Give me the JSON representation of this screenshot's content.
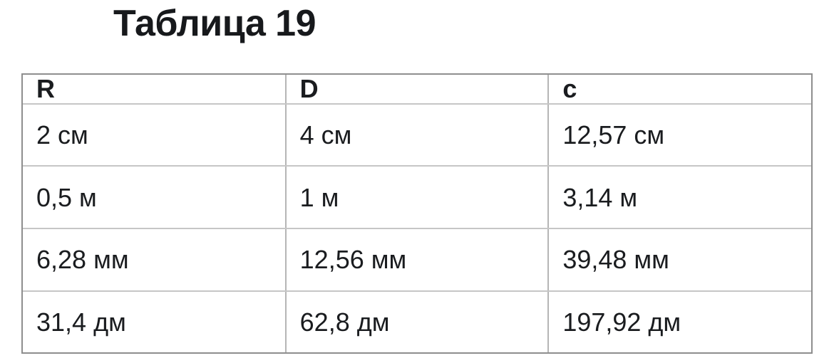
{
  "title": "Таблица 19",
  "table": {
    "headers": [
      "R",
      "D",
      "c"
    ],
    "rows": [
      [
        "2 см",
        "4 см",
        "12,57 см"
      ],
      [
        "0,5 м",
        "1 м",
        "3,14 м"
      ],
      [
        "6,28 мм",
        "12,56 мм",
        "39,48 мм"
      ],
      [
        "31,4 дм",
        "62,8 дм",
        "197,92 дм"
      ]
    ]
  },
  "colors": {
    "background": "#ffffff",
    "text": "#1a1c1f",
    "outer_border": "#8e8e8e",
    "inner_border_vertical": "#b5b5b5",
    "inner_border_horizontal": "#c6c6c6"
  }
}
